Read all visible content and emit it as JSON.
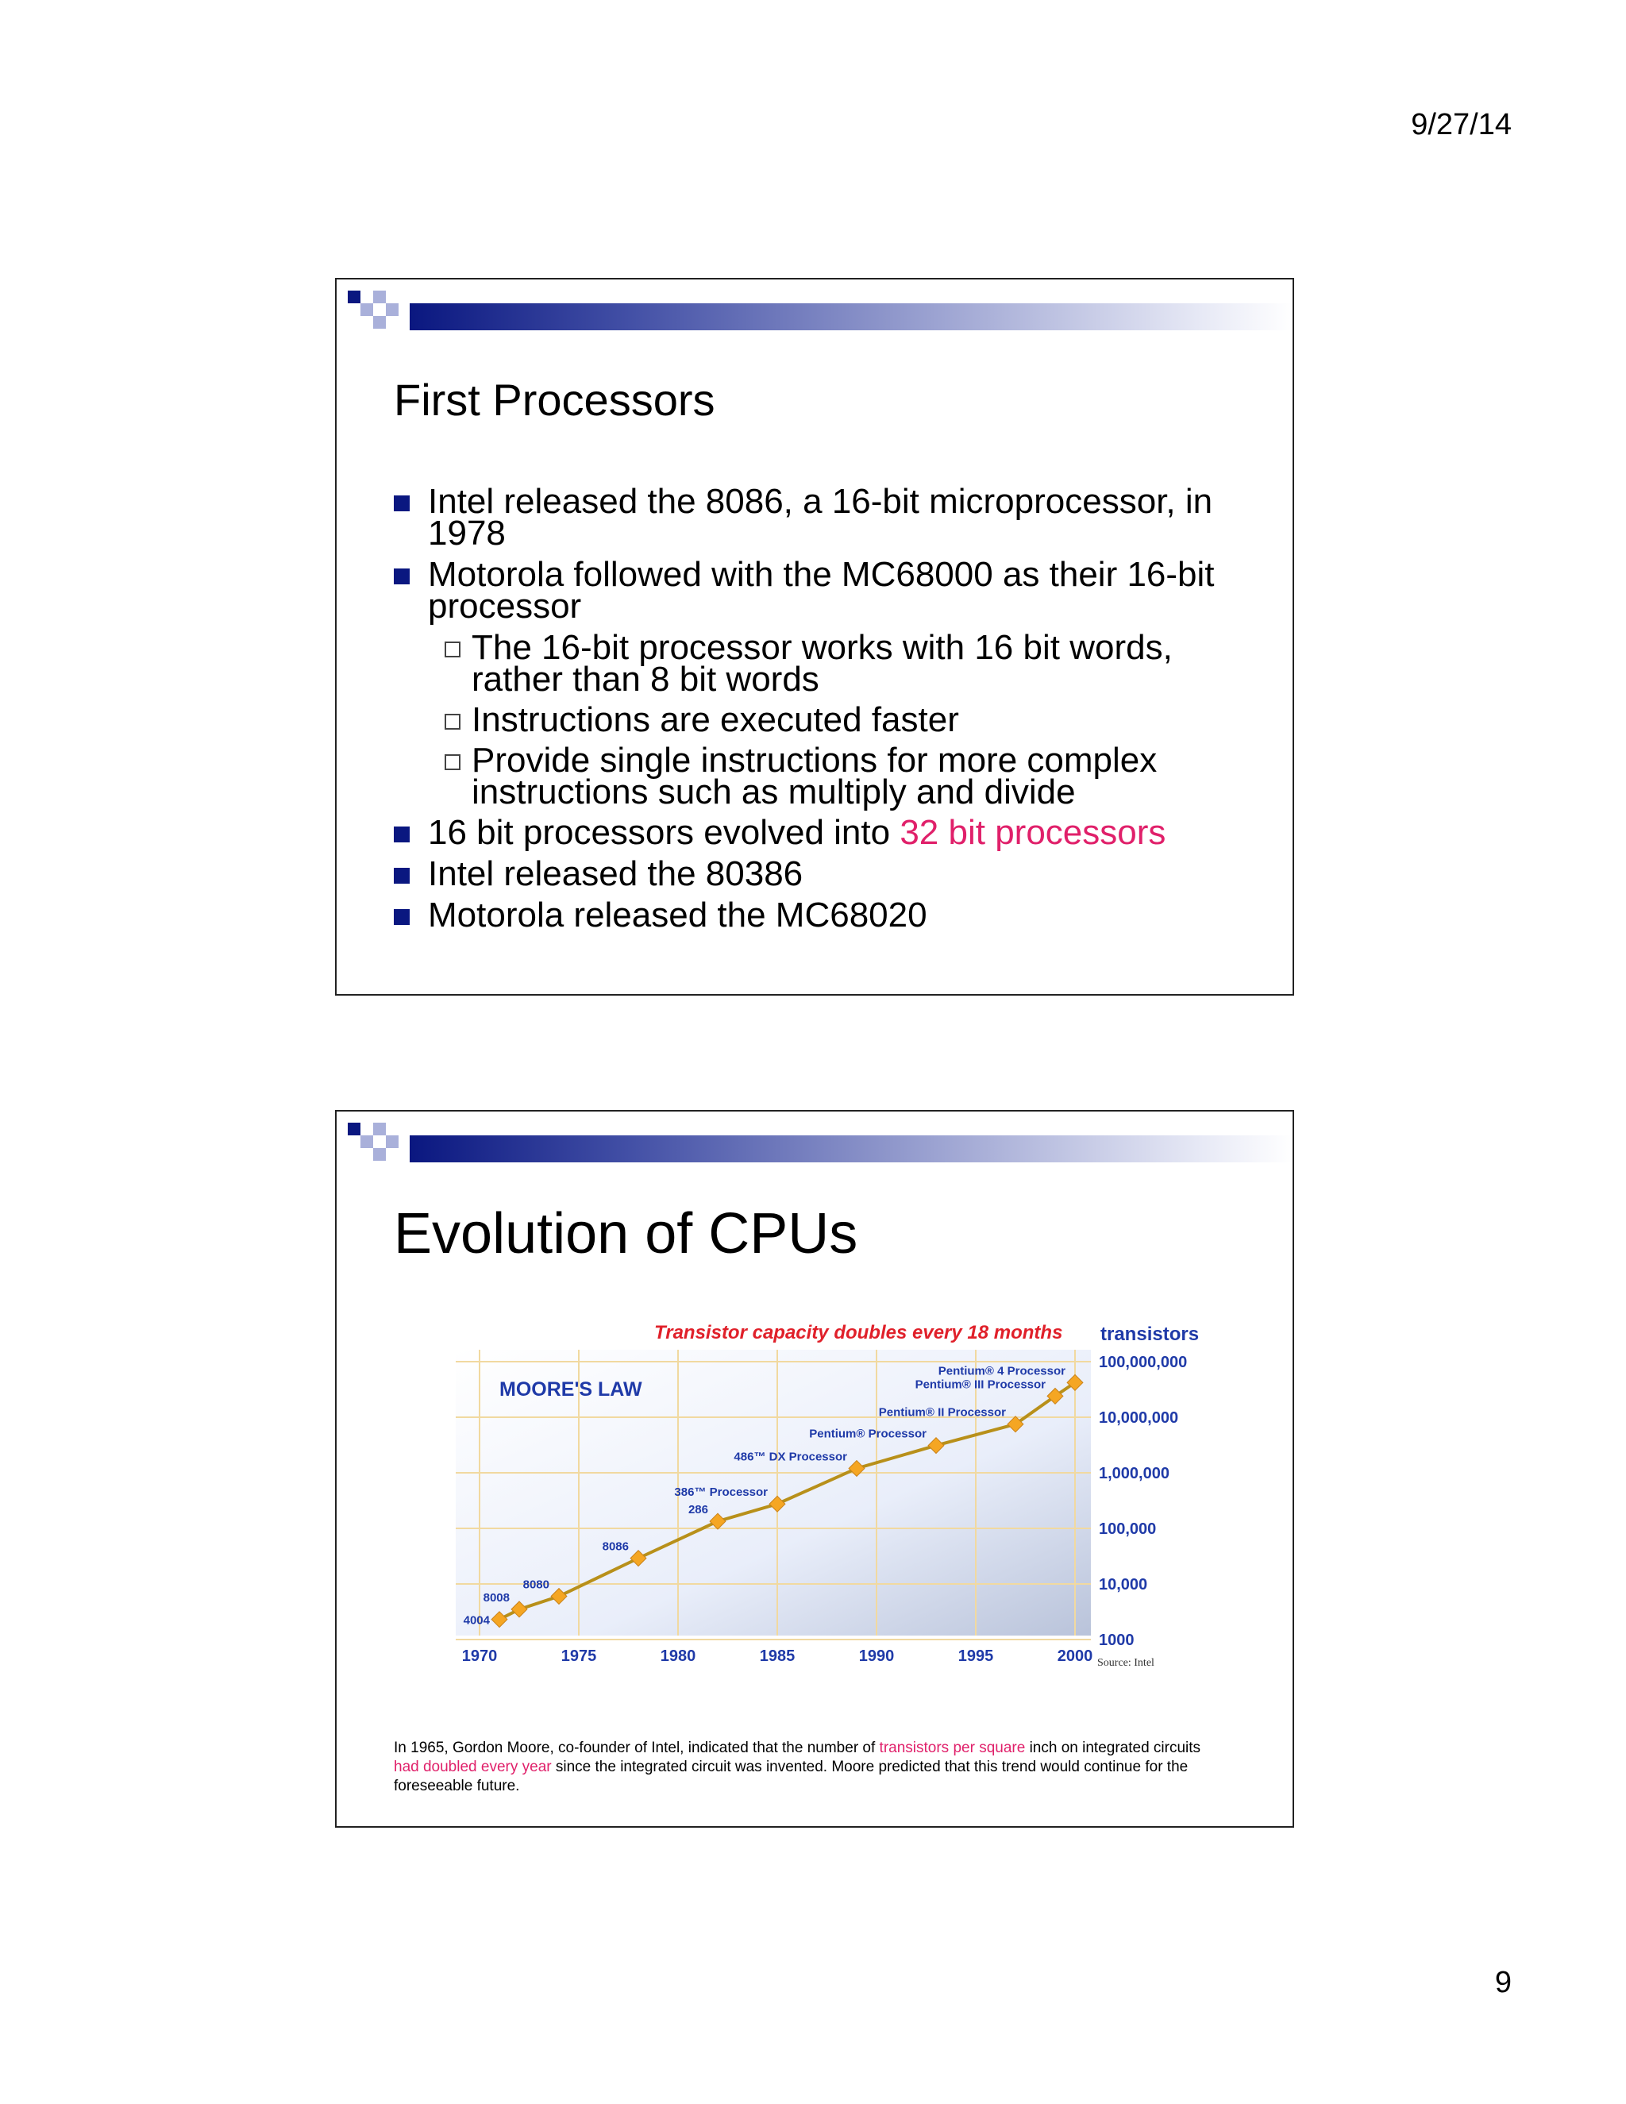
{
  "page": {
    "date": "9/27/14",
    "number": "9"
  },
  "slide1": {
    "title": "First Processors",
    "b1": "Intel released the 8086, a 16-bit microprocessor, in 1978",
    "b2": "Motorola followed with the MC68000 as their 16-bit processor",
    "s1": "The 16-bit processor works with 16 bit words, rather than 8 bit words",
    "s2": "Instructions are executed faster",
    "s3": "Provide single instructions for more complex instructions such as multiply and divide",
    "b3_pre": "16 bit processors evolved into ",
    "b3_hl": "32 bit processors",
    "b4": "Intel released the 80386",
    "b5": "Motorola released the MC68020"
  },
  "slide2": {
    "title": "Evolution of CPUs",
    "caption_1": "In 1965, Gordon Moore, co-founder of Intel, indicated that the number of ",
    "caption_hl1": "transistors per square",
    "caption_2": " inch on integrated circuits ",
    "caption_hl2": "had doubled every year",
    "caption_3": " since the integrated circuit was invented. Moore predicted that this trend would continue for the foreseeable future."
  },
  "colors": {
    "accent_blue": "#0a1780",
    "highlight_pink": "#e0206a",
    "chart_red": "#e0202a",
    "chart_blue": "#1f3aa8",
    "line_gold": "#b8901a",
    "marker_orange": "#f5a623"
  },
  "chart_data": {
    "type": "line",
    "title": "Transistor capacity doubles every 18 months",
    "subtitle": "MOORE'S LAW",
    "ylabel": "transistors",
    "source": "Source: Intel",
    "y_scale": "log",
    "xlim": [
      1970,
      2000
    ],
    "ylim": [
      1000,
      100000000
    ],
    "x_ticks": [
      "1970",
      "1975",
      "1980",
      "1985",
      "1990",
      "1995",
      "2000"
    ],
    "y_ticks": [
      "1000",
      "10,000",
      "100,000",
      "1,000,000",
      "10,000,000",
      "100,000,000"
    ],
    "points": [
      {
        "label": "4004",
        "x": 1971,
        "y": 2300
      },
      {
        "label": "8008",
        "x": 1972,
        "y": 3500
      },
      {
        "label": "8080",
        "x": 1974,
        "y": 6000
      },
      {
        "label": "8086",
        "x": 1978,
        "y": 29000
      },
      {
        "label": "286",
        "x": 1982,
        "y": 134000
      },
      {
        "label": "386™ Processor",
        "x": 1985,
        "y": 275000
      },
      {
        "label": "486™ DX Processor",
        "x": 1989,
        "y": 1200000
      },
      {
        "label": "Pentium® Processor",
        "x": 1993,
        "y": 3100000
      },
      {
        "label": "Pentium® II Processor",
        "x": 1997,
        "y": 7500000
      },
      {
        "label": "Pentium® III Processor",
        "x": 1999,
        "y": 24000000
      },
      {
        "label": "Pentium® 4 Processor",
        "x": 2000,
        "y": 42000000
      }
    ]
  }
}
